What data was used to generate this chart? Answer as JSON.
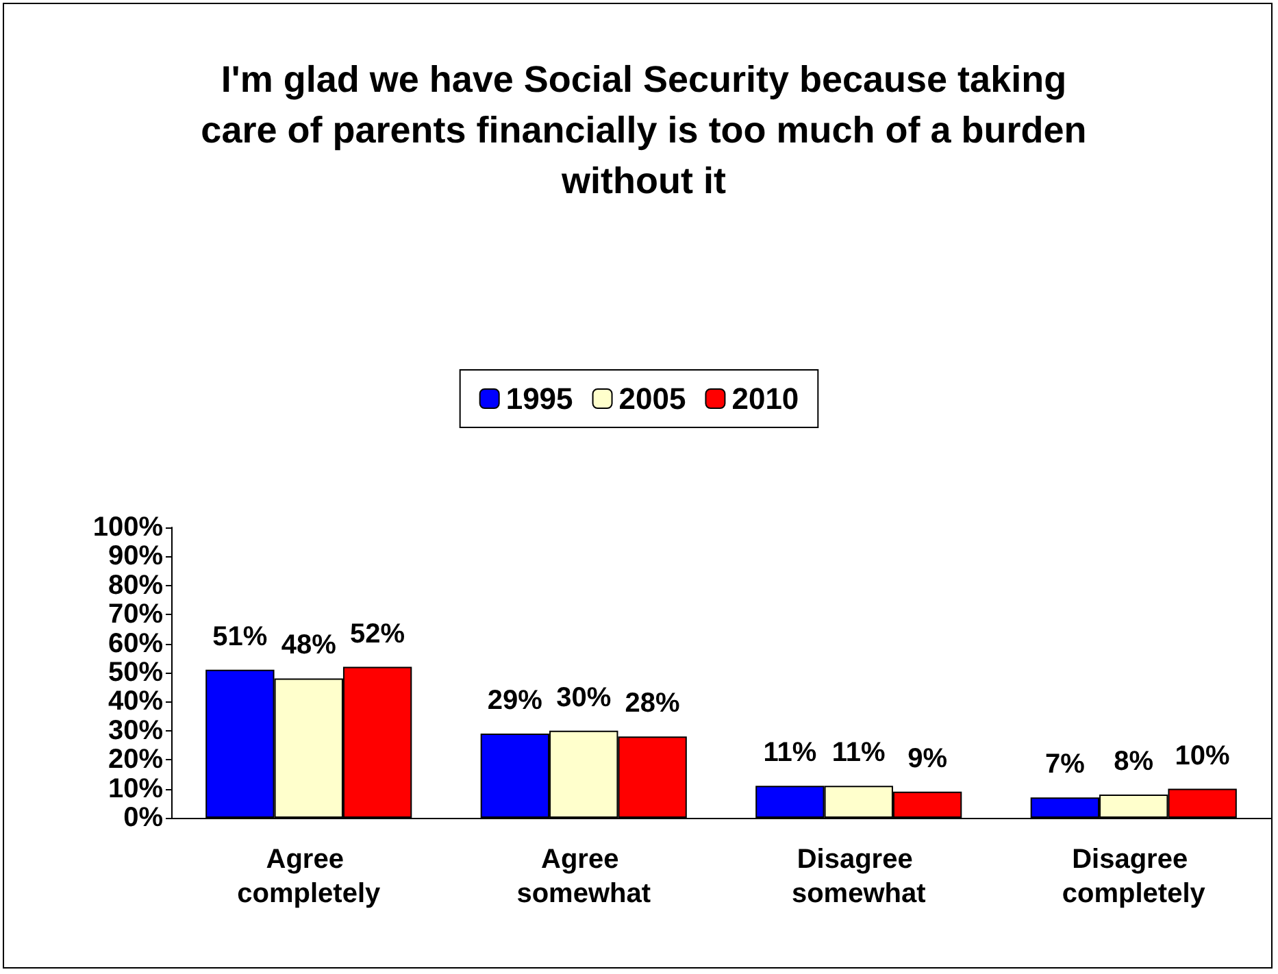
{
  "chart_data": {
    "type": "bar",
    "title": "I'm glad we have Social Security because taking care of parents financially is too much of a burden without it",
    "categories": [
      "Agree completely",
      "Agree somewhat",
      "Disagree somewhat",
      "Disagree completely"
    ],
    "series": [
      {
        "name": "1995",
        "color": "#0000ff",
        "values": [
          51,
          29,
          11,
          7
        ],
        "value_labels": [
          "51%",
          "29%",
          "11%",
          "7%"
        ]
      },
      {
        "name": "2005",
        "color": "#ffffcc",
        "values": [
          48,
          30,
          11,
          8
        ],
        "value_labels": [
          "48%",
          "30%",
          "11%",
          "8%"
        ]
      },
      {
        "name": "2010",
        "color": "#ff0000",
        "values": [
          52,
          28,
          9,
          10
        ],
        "value_labels": [
          "52%",
          "28%",
          "9%",
          "10%"
        ]
      }
    ],
    "ylim": [
      0,
      100
    ],
    "yticks": [
      {
        "value": 0,
        "label": "0%"
      },
      {
        "value": 10,
        "label": "10%"
      },
      {
        "value": 20,
        "label": "20%"
      },
      {
        "value": 30,
        "label": "30%"
      },
      {
        "value": 40,
        "label": "40%"
      },
      {
        "value": 50,
        "label": "50%"
      },
      {
        "value": 60,
        "label": "60%"
      },
      {
        "value": 70,
        "label": "70%"
      },
      {
        "value": 80,
        "label": "80%"
      },
      {
        "value": 90,
        "label": "90%"
      },
      {
        "value": 100,
        "label": "100%"
      }
    ],
    "grid": false,
    "legend": "top"
  }
}
